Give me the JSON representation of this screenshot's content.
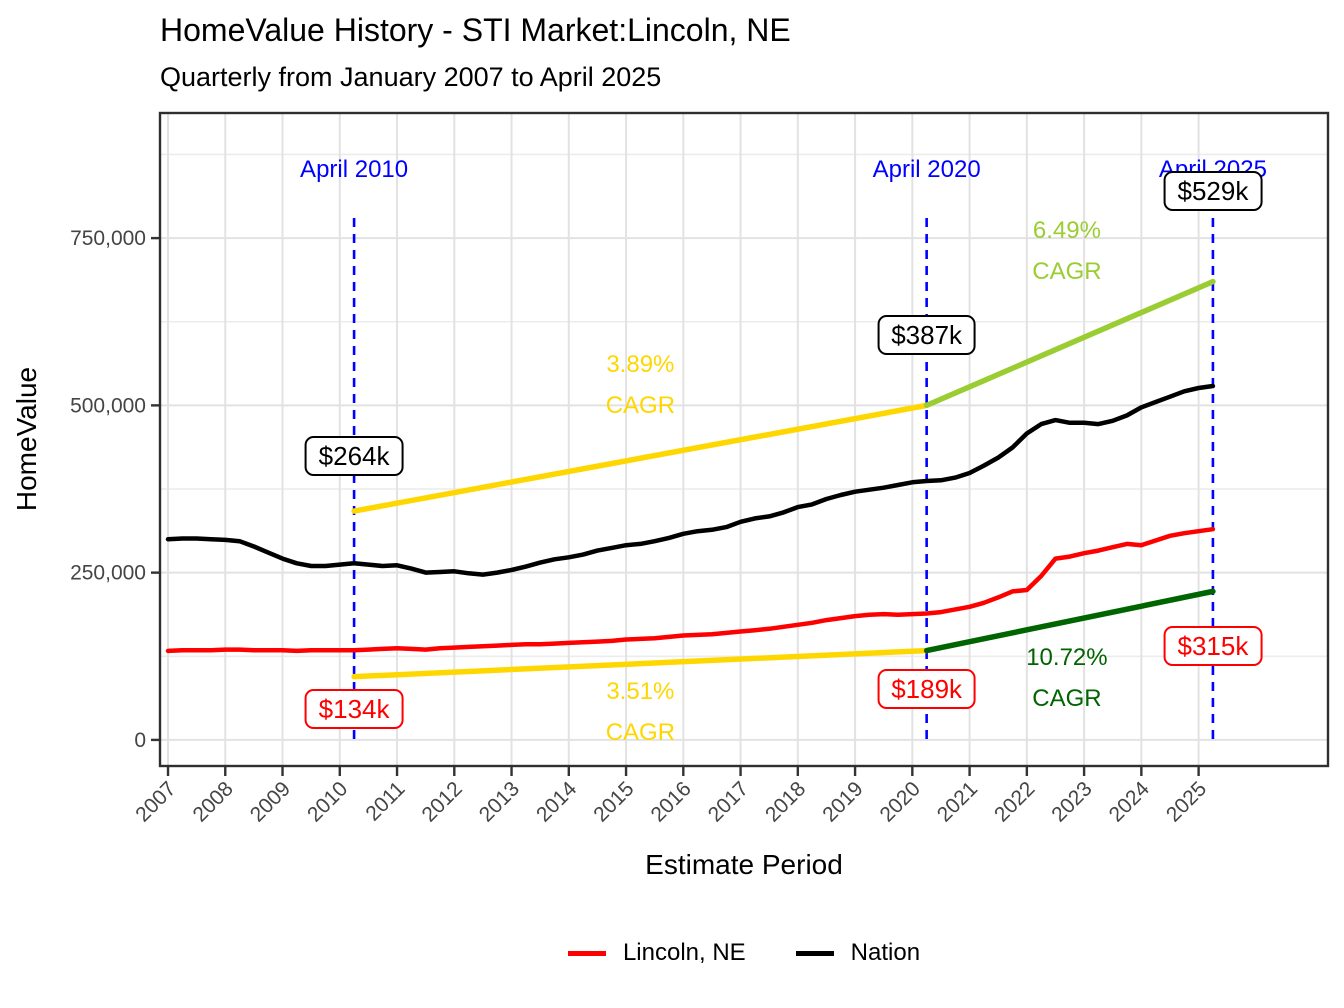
{
  "figure": {
    "title": "HomeValue History - STI Market:Lincoln, NE",
    "subtitle": "Quarterly from January 2007 to April 2025"
  },
  "legend": {
    "position": "bottom",
    "items": [
      {
        "label": "Lincoln, NE",
        "color": "#FF0000"
      },
      {
        "label": "Nation",
        "color": "#000000"
      }
    ]
  },
  "chart_data": {
    "type": "line",
    "title": "HomeValue History - STI Market:Lincoln, NE",
    "subtitle": "Quarterly from January 2007 to April 2025",
    "xlabel": "Estimate Period",
    "ylabel": "HomeValue",
    "xlim": [
      2006.86,
      2027.26
    ],
    "ylim": [
      -39000,
      937000
    ],
    "grid": "light gray; vertical major lines at each year, horizontal major lines every 250,000 with minors every 125,000",
    "x_ticks": [
      2007,
      2008,
      2009,
      2010,
      2011,
      2012,
      2013,
      2014,
      2015,
      2016,
      2017,
      2018,
      2019,
      2020,
      2021,
      2022,
      2023,
      2024,
      2025
    ],
    "y_ticks": [
      {
        "value": 0,
        "label": "0"
      },
      {
        "value": 250000,
        "label": "250,000"
      },
      {
        "value": 500000,
        "label": "500,000"
      },
      {
        "value": 750000,
        "label": "750,000"
      }
    ],
    "y_minor_ticks": [
      125000,
      375000,
      625000,
      875000
    ],
    "series": [
      {
        "name": "Lincoln, NE",
        "color": "#FF0000",
        "width": 4.5,
        "points": [
          [
            2007.0,
            133000
          ],
          [
            2007.25,
            134000
          ],
          [
            2007.5,
            134000
          ],
          [
            2007.75,
            134000
          ],
          [
            2008.0,
            135000
          ],
          [
            2008.25,
            135000
          ],
          [
            2008.5,
            134000
          ],
          [
            2008.75,
            134000
          ],
          [
            2009.0,
            134000
          ],
          [
            2009.25,
            133000
          ],
          [
            2009.5,
            134000
          ],
          [
            2009.75,
            134000
          ],
          [
            2010.0,
            134000
          ],
          [
            2010.25,
            134000
          ],
          [
            2010.5,
            135000
          ],
          [
            2010.75,
            136000
          ],
          [
            2011.0,
            137000
          ],
          [
            2011.25,
            136000
          ],
          [
            2011.5,
            135000
          ],
          [
            2011.75,
            137000
          ],
          [
            2012.0,
            138000
          ],
          [
            2012.25,
            139000
          ],
          [
            2012.5,
            140000
          ],
          [
            2012.75,
            141000
          ],
          [
            2013.0,
            142000
          ],
          [
            2013.25,
            143000
          ],
          [
            2013.5,
            143000
          ],
          [
            2013.75,
            144000
          ],
          [
            2014.0,
            145000
          ],
          [
            2014.25,
            146000
          ],
          [
            2014.5,
            147000
          ],
          [
            2014.75,
            148000
          ],
          [
            2015.0,
            150000
          ],
          [
            2015.25,
            151000
          ],
          [
            2015.5,
            152000
          ],
          [
            2015.75,
            154000
          ],
          [
            2016.0,
            156000
          ],
          [
            2016.25,
            157000
          ],
          [
            2016.5,
            158000
          ],
          [
            2016.75,
            160000
          ],
          [
            2017.0,
            162000
          ],
          [
            2017.25,
            164000
          ],
          [
            2017.5,
            166000
          ],
          [
            2017.75,
            169000
          ],
          [
            2018.0,
            172000
          ],
          [
            2018.25,
            175000
          ],
          [
            2018.5,
            179000
          ],
          [
            2018.75,
            182000
          ],
          [
            2019.0,
            185000
          ],
          [
            2019.25,
            187000
          ],
          [
            2019.5,
            188000
          ],
          [
            2019.75,
            187000
          ],
          [
            2020.0,
            188000
          ],
          [
            2020.25,
            189000
          ],
          [
            2020.5,
            191000
          ],
          [
            2020.75,
            195000
          ],
          [
            2021.0,
            199000
          ],
          [
            2021.25,
            205000
          ],
          [
            2021.5,
            213000
          ],
          [
            2021.75,
            222000
          ],
          [
            2022.0,
            224000
          ],
          [
            2022.25,
            245000
          ],
          [
            2022.5,
            271000
          ],
          [
            2022.75,
            274000
          ],
          [
            2023.0,
            279000
          ],
          [
            2023.25,
            283000
          ],
          [
            2023.5,
            288000
          ],
          [
            2023.75,
            293000
          ],
          [
            2024.0,
            291000
          ],
          [
            2024.25,
            298000
          ],
          [
            2024.5,
            305000
          ],
          [
            2024.75,
            309000
          ],
          [
            2025.0,
            312000
          ],
          [
            2025.25,
            315000
          ]
        ]
      },
      {
        "name": "Nation",
        "color": "#000000",
        "width": 4.5,
        "points": [
          [
            2007.0,
            300000
          ],
          [
            2007.25,
            301000
          ],
          [
            2007.5,
            301000
          ],
          [
            2007.75,
            300000
          ],
          [
            2008.0,
            299000
          ],
          [
            2008.25,
            297000
          ],
          [
            2008.5,
            289000
          ],
          [
            2008.75,
            280000
          ],
          [
            2009.0,
            271000
          ],
          [
            2009.25,
            264000
          ],
          [
            2009.5,
            260000
          ],
          [
            2009.75,
            260000
          ],
          [
            2010.0,
            262000
          ],
          [
            2010.25,
            264000
          ],
          [
            2010.5,
            262000
          ],
          [
            2010.75,
            260000
          ],
          [
            2011.0,
            261000
          ],
          [
            2011.25,
            256000
          ],
          [
            2011.5,
            250000
          ],
          [
            2011.75,
            251000
          ],
          [
            2012.0,
            252000
          ],
          [
            2012.25,
            249000
          ],
          [
            2012.5,
            247000
          ],
          [
            2012.75,
            250000
          ],
          [
            2013.0,
            254000
          ],
          [
            2013.25,
            259000
          ],
          [
            2013.5,
            265000
          ],
          [
            2013.75,
            270000
          ],
          [
            2014.0,
            273000
          ],
          [
            2014.25,
            277000
          ],
          [
            2014.5,
            283000
          ],
          [
            2014.75,
            287000
          ],
          [
            2015.0,
            291000
          ],
          [
            2015.25,
            293000
          ],
          [
            2015.5,
            297000
          ],
          [
            2015.75,
            302000
          ],
          [
            2016.0,
            308000
          ],
          [
            2016.25,
            312000
          ],
          [
            2016.5,
            314000
          ],
          [
            2016.75,
            318000
          ],
          [
            2017.0,
            326000
          ],
          [
            2017.25,
            331000
          ],
          [
            2017.5,
            334000
          ],
          [
            2017.75,
            340000
          ],
          [
            2018.0,
            348000
          ],
          [
            2018.25,
            352000
          ],
          [
            2018.5,
            360000
          ],
          [
            2018.75,
            366000
          ],
          [
            2019.0,
            371000
          ],
          [
            2019.25,
            374000
          ],
          [
            2019.5,
            377000
          ],
          [
            2019.75,
            381000
          ],
          [
            2020.0,
            385000
          ],
          [
            2020.25,
            387000
          ],
          [
            2020.5,
            388000
          ],
          [
            2020.75,
            392000
          ],
          [
            2021.0,
            399000
          ],
          [
            2021.25,
            410000
          ],
          [
            2021.5,
            422000
          ],
          [
            2021.75,
            437000
          ],
          [
            2022.0,
            458000
          ],
          [
            2022.25,
            472000
          ],
          [
            2022.5,
            478000
          ],
          [
            2022.75,
            474000
          ],
          [
            2023.0,
            474000
          ],
          [
            2023.25,
            472000
          ],
          [
            2023.5,
            477000
          ],
          [
            2023.75,
            485000
          ],
          [
            2024.0,
            497000
          ],
          [
            2024.25,
            505000
          ],
          [
            2024.5,
            513000
          ],
          [
            2024.75,
            521000
          ],
          [
            2025.0,
            526000
          ],
          [
            2025.25,
            529000
          ]
        ]
      }
    ],
    "trend_lines": [
      {
        "name": "nation-trend-2010-2020",
        "cagr": "3.89%",
        "color": "#FFD700",
        "width": 5.5,
        "from": [
          2010.25,
          342000
        ],
        "to": [
          2020.25,
          500000
        ]
      },
      {
        "name": "nation-trend-2020-2025",
        "cagr": "6.49%",
        "color": "#9ACD32",
        "width": 5.5,
        "from": [
          2020.25,
          500000
        ],
        "to": [
          2025.25,
          685000
        ]
      },
      {
        "name": "lincoln-trend-2010-2020",
        "cagr": "3.51%",
        "color": "#FFD700",
        "width": 5.5,
        "from": [
          2010.25,
          94500
        ],
        "to": [
          2020.25,
          133500
        ]
      },
      {
        "name": "lincoln-trend-2020-2025",
        "cagr": "10.72%",
        "color": "#006400",
        "width": 5.5,
        "from": [
          2020.25,
          133500
        ],
        "to": [
          2025.25,
          222000
        ]
      }
    ],
    "vlines": [
      {
        "x": 2010.25,
        "label": "April 2010",
        "color": "#0000FF",
        "style": "dashed"
      },
      {
        "x": 2020.25,
        "label": "April 2020",
        "color": "#0000FF",
        "style": "dashed"
      },
      {
        "x": 2025.25,
        "label": "April 2025",
        "color": "#0000FF",
        "style": "dashed"
      }
    ],
    "value_labels": [
      {
        "text": "$264k",
        "series": "Nation",
        "x": 2010.25,
        "y": 424000,
        "color": "#000000"
      },
      {
        "text": "$134k",
        "series": "Lincoln, NE",
        "x": 2010.25,
        "y": 46000,
        "color": "#FF0000"
      },
      {
        "text": "$387k",
        "series": "Nation",
        "x": 2020.25,
        "y": 605000,
        "color": "#000000"
      },
      {
        "text": "$189k",
        "series": "Lincoln, NE",
        "x": 2020.25,
        "y": 76000,
        "color": "#FF0000"
      },
      {
        "text": "$529k",
        "series": "Nation",
        "x": 2025.25,
        "y": 820000,
        "color": "#000000"
      },
      {
        "text": "$315k",
        "series": "Lincoln, NE",
        "x": 2025.25,
        "y": 141000,
        "color": "#FF0000"
      }
    ],
    "cagr_labels": [
      {
        "lines": [
          "3.89%",
          "CAGR"
        ],
        "x": 2015.25,
        "y": 531000,
        "color": "#FFD700"
      },
      {
        "lines": [
          "3.51%",
          "CAGR"
        ],
        "x": 2015.25,
        "y": 41000,
        "color": "#FFD700"
      },
      {
        "lines": [
          "6.49%",
          "CAGR"
        ],
        "x": 2022.7,
        "y": 730000,
        "color": "#9ACD32"
      },
      {
        "lines": [
          "10.72%",
          "CAGR"
        ],
        "x": 2022.7,
        "y": 93000,
        "color": "#006400"
      }
    ]
  }
}
